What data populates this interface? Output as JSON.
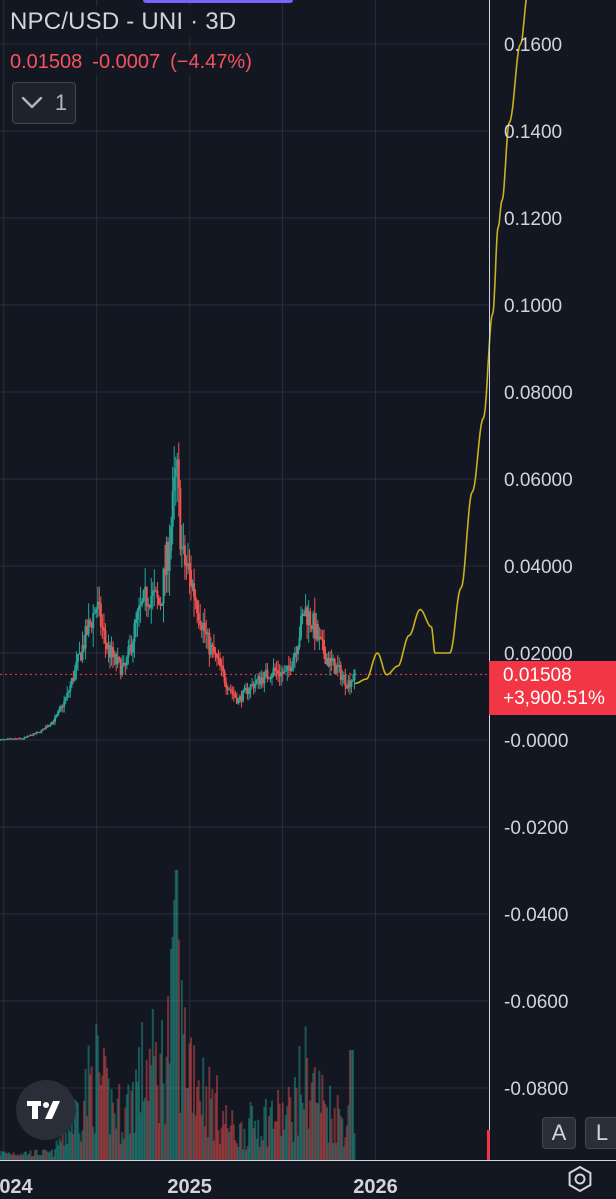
{
  "header": {
    "title": "NPC/USD - UNI · 3D",
    "last_price": "0.01508",
    "change": "-0.0007",
    "change_pct": "(−4.47%)",
    "indicator_count": "1"
  },
  "price_label": {
    "price": "0.01508",
    "percent": "+3,900.51%"
  },
  "buttons": {
    "auto_label": "A",
    "log_label": "L"
  },
  "colors": {
    "background": "#131722",
    "up": "#26a69a",
    "down": "#ef5350",
    "projection": "#c9b21e",
    "price_line": "#f23645"
  },
  "chart_data": {
    "type": "candlestick",
    "title": "NPC/USD - UNI · 3D",
    "yticks": [
      "0.1600",
      "0.1400",
      "0.1200",
      "0.1000",
      "0.08000",
      "0.06000",
      "0.04000",
      "0.02000",
      "-0.0000",
      "-0.0200",
      "-0.0400",
      "-0.0600",
      "-0.0800"
    ],
    "ytick_values": [
      0.16,
      0.14,
      0.12,
      0.1,
      0.08,
      0.06,
      0.04,
      0.02,
      0.0,
      -0.02,
      -0.04,
      -0.06,
      -0.08
    ],
    "xticks": [
      {
        "label": "024",
        "year": 2024.0
      },
      {
        "label": "2025",
        "year": 2025.0
      },
      {
        "label": "2026",
        "year": 2026.0
      }
    ],
    "ylim": [
      -0.093,
      0.17
    ],
    "xlim": [
      2023.98,
      2026.82
    ],
    "current_price": 0.01508,
    "grid": true,
    "price_path": [
      [
        2023.98,
        0.0
      ],
      [
        2024.1,
        0.0003
      ],
      [
        2024.2,
        0.002
      ],
      [
        2024.28,
        0.005
      ],
      [
        2024.34,
        0.01
      ],
      [
        2024.4,
        0.018
      ],
      [
        2024.45,
        0.025
      ],
      [
        2024.5,
        0.031
      ],
      [
        2024.55,
        0.022
      ],
      [
        2024.6,
        0.018
      ],
      [
        2024.65,
        0.016
      ],
      [
        2024.72,
        0.028
      ],
      [
        2024.78,
        0.034
      ],
      [
        2024.84,
        0.031
      ],
      [
        2024.89,
        0.045
      ],
      [
        2024.93,
        0.062
      ],
      [
        2024.96,
        0.042
      ],
      [
        2025.0,
        0.038
      ],
      [
        2025.05,
        0.03
      ],
      [
        2025.1,
        0.022
      ],
      [
        2025.15,
        0.018
      ],
      [
        2025.2,
        0.013
      ],
      [
        2025.26,
        0.009
      ],
      [
        2025.32,
        0.012
      ],
      [
        2025.38,
        0.014
      ],
      [
        2025.45,
        0.016
      ],
      [
        2025.52,
        0.015
      ],
      [
        2025.57,
        0.021
      ],
      [
        2025.62,
        0.03
      ],
      [
        2025.66,
        0.027
      ],
      [
        2025.7,
        0.022
      ],
      [
        2025.75,
        0.018
      ],
      [
        2025.8,
        0.016
      ],
      [
        2025.85,
        0.013
      ],
      [
        2025.89,
        0.015
      ]
    ],
    "projection": [
      [
        2025.89,
        0.013
      ],
      [
        2025.95,
        0.014
      ],
      [
        2026.01,
        0.02
      ],
      [
        2026.06,
        0.015
      ],
      [
        2026.12,
        0.017
      ],
      [
        2026.18,
        0.024
      ],
      [
        2026.24,
        0.03
      ],
      [
        2026.3,
        0.026
      ],
      [
        2026.32,
        0.02
      ],
      [
        2026.4,
        0.02
      ],
      [
        2026.46,
        0.035
      ],
      [
        2026.52,
        0.057
      ],
      [
        2026.58,
        0.074
      ],
      [
        2026.63,
        0.098
      ],
      [
        2026.66,
        0.118
      ],
      [
        2026.68,
        0.124
      ],
      [
        2026.72,
        0.142
      ],
      [
        2026.78,
        0.16
      ],
      [
        2026.82,
        0.172
      ]
    ]
  }
}
